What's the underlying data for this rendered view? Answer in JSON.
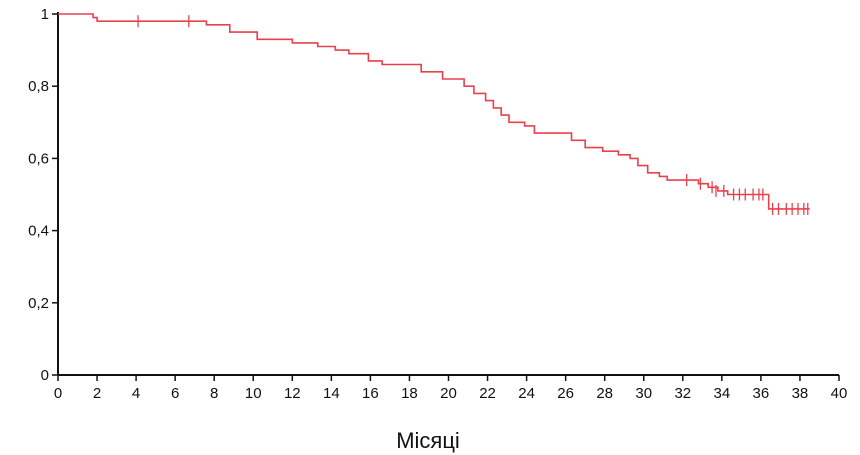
{
  "chart_data": {
    "type": "line",
    "title": "",
    "xlabel": "Місяці",
    "ylabel": "",
    "xlim": [
      0,
      40
    ],
    "ylim": [
      0,
      1
    ],
    "x_ticks": [
      0,
      2,
      4,
      6,
      8,
      10,
      12,
      14,
      16,
      18,
      20,
      22,
      24,
      26,
      28,
      30,
      32,
      34,
      36,
      38,
      40
    ],
    "x_tick_labels": [
      "0",
      "2",
      "4",
      "6",
      "8",
      "10",
      "12",
      "14",
      "16",
      "18",
      "20",
      "22",
      "24",
      "26",
      "28",
      "30",
      "32",
      "34",
      "36",
      "38",
      "40"
    ],
    "y_ticks": [
      0,
      0.2,
      0.4,
      0.6,
      0.8,
      1
    ],
    "y_tick_labels": [
      "0",
      "0,2",
      "0,4",
      "0,6",
      "0,8",
      "1"
    ],
    "grid": false,
    "legend": "none",
    "series_color": "#e8414e",
    "series": [
      {
        "step": [
          [
            0,
            1
          ],
          [
            1.8,
            0.99
          ],
          [
            2,
            0.98
          ],
          [
            7,
            0.98
          ],
          [
            7.6,
            0.97
          ],
          [
            8.8,
            0.95
          ],
          [
            10.2,
            0.93
          ],
          [
            12,
            0.92
          ],
          [
            13.3,
            0.91
          ],
          [
            14.2,
            0.9
          ],
          [
            14.9,
            0.89
          ],
          [
            15.9,
            0.87
          ],
          [
            16.6,
            0.86
          ],
          [
            18.6,
            0.84
          ],
          [
            19.7,
            0.82
          ],
          [
            20.8,
            0.8
          ],
          [
            21.3,
            0.78
          ],
          [
            21.9,
            0.76
          ],
          [
            22.3,
            0.74
          ],
          [
            22.7,
            0.72
          ],
          [
            23.1,
            0.7
          ],
          [
            23.9,
            0.69
          ],
          [
            24.4,
            0.67
          ],
          [
            26.3,
            0.65
          ],
          [
            27,
            0.63
          ],
          [
            27.9,
            0.62
          ],
          [
            28.7,
            0.61
          ],
          [
            29.3,
            0.6
          ],
          [
            29.7,
            0.58
          ],
          [
            30.2,
            0.56
          ],
          [
            30.8,
            0.55
          ],
          [
            31.2,
            0.54
          ],
          [
            32.8,
            0.53
          ],
          [
            33.3,
            0.52
          ],
          [
            33.8,
            0.51
          ],
          [
            34.3,
            0.5
          ],
          [
            36.4,
            0.46
          ],
          [
            38.5,
            0.46
          ]
        ],
        "censored": [
          [
            4.1,
            0.98
          ],
          [
            6.7,
            0.98
          ],
          [
            32.2,
            0.54
          ],
          [
            32.9,
            0.53
          ],
          [
            33.5,
            0.52
          ],
          [
            33.7,
            0.51
          ],
          [
            34.1,
            0.51
          ],
          [
            34.6,
            0.5
          ],
          [
            34.9,
            0.5
          ],
          [
            35.2,
            0.5
          ],
          [
            35.6,
            0.5
          ],
          [
            35.9,
            0.5
          ],
          [
            36.1,
            0.5
          ],
          [
            36.6,
            0.46
          ],
          [
            36.9,
            0.46
          ],
          [
            37.3,
            0.46
          ],
          [
            37.6,
            0.46
          ],
          [
            37.9,
            0.46
          ],
          [
            38.2,
            0.46
          ],
          [
            38.4,
            0.46
          ]
        ]
      }
    ]
  }
}
